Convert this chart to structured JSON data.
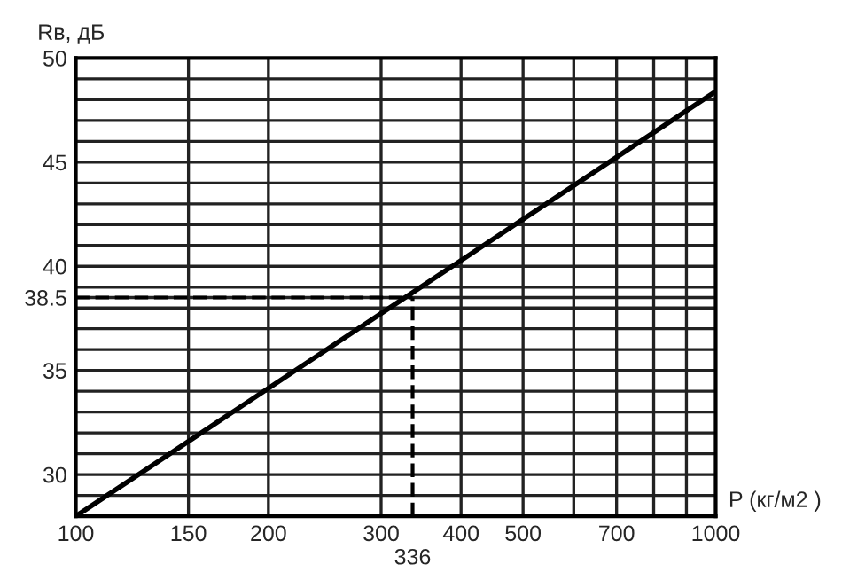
{
  "chart_data": {
    "type": "line",
    "xlabel": "P (кг/м2 )",
    "ylabel": "Rв, дБ",
    "log": "x",
    "x": [
      100,
      1000
    ],
    "series": [
      {
        "color": "#000000",
        "values": [
          28,
          48.4
        ]
      }
    ],
    "xlim": [
      100,
      1000
    ],
    "ylim": [
      28,
      50
    ],
    "xticks": [
      100,
      150,
      200,
      300,
      400,
      500,
      {
        "value": 600,
        "label": null
      },
      700,
      {
        "value": 800,
        "label": null
      },
      {
        "value": 900,
        "label": null
      },
      1000
    ],
    "yticks": [
      {
        "value": 29,
        "label": null
      },
      30,
      {
        "value": 31,
        "label": null
      },
      {
        "value": 32,
        "label": null
      },
      {
        "value": 33,
        "label": null
      },
      {
        "value": 34,
        "label": null
      },
      35,
      {
        "value": 36,
        "label": null
      },
      {
        "value": 37,
        "label": null
      },
      {
        "value": 38,
        "label": null
      },
      {
        "value": 38.5,
        "label": "38.5"
      },
      {
        "value": 39,
        "label": null
      },
      40,
      {
        "value": 41,
        "label": null
      },
      {
        "value": 42,
        "label": null
      },
      {
        "value": 43,
        "label": null
      },
      {
        "value": 44,
        "label": null
      },
      45,
      {
        "value": 46,
        "label": null
      },
      {
        "value": 47,
        "label": null
      },
      {
        "value": 48,
        "label": null
      },
      {
        "value": 49,
        "label": null
      },
      50
    ],
    "grid": true,
    "marker": "none",
    "line_style": "solid",
    "ref_lines": [
      {
        "axis": "y",
        "value": 38.5,
        "line_style": "dashed"
      },
      {
        "axis": "x",
        "value": 336,
        "label": "336",
        "line_style": "dashed"
      }
    ]
  }
}
